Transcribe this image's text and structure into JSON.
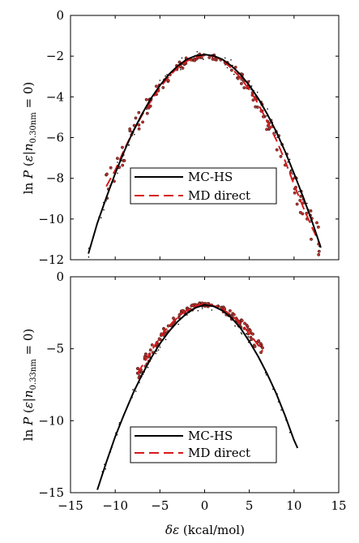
{
  "colors": {
    "mc_line": "#000000",
    "md_line": "#d7191c",
    "md_point_fill": "#b5352e",
    "md_point_stroke": "#3a1010",
    "dot": "#000000"
  },
  "chart_data": [
    {
      "type": "line",
      "ylabel_parts": [
        "ln ",
        "P",
        " (",
        "ε",
        "|",
        "n",
        "0.30nm",
        " = 0)"
      ],
      "xlim": [
        -15,
        15
      ],
      "ylim": [
        -12,
        0
      ],
      "xticks": [
        "−15",
        "−10",
        "−5",
        "0",
        "5",
        "10",
        "15"
      ],
      "yticks": [
        "0",
        "−2",
        "−4",
        "−6",
        "−8",
        "−10",
        "−12"
      ],
      "xtick_values": [
        -15,
        -10,
        -5,
        0,
        5,
        10,
        15
      ],
      "ytick_values": [
        0,
        -2,
        -4,
        -6,
        -8,
        -10,
        -12
      ],
      "legend": {
        "placement": "lower-center",
        "entries": [
          "MC-HS",
          "MD direct"
        ]
      },
      "series": [
        {
          "name": "MC-HS",
          "style": "solid",
          "x": [
            -13.0,
            -12.0,
            -11.0,
            -10.0,
            -9.0,
            -8.0,
            -7.0,
            -6.0,
            -5.0,
            -4.0,
            -3.0,
            -2.0,
            -1.0,
            0.0,
            1.0,
            2.0,
            3.0,
            4.0,
            5.0,
            6.0,
            7.0,
            8.0,
            9.0,
            10.0,
            11.0,
            12.0,
            13.0
          ],
          "y": [
            -11.7,
            -10.2,
            -8.96,
            -7.76,
            -6.68,
            -5.7,
            -4.84,
            -4.08,
            -3.44,
            -2.9,
            -2.48,
            -2.16,
            -1.98,
            -1.92,
            -1.98,
            -2.16,
            -2.48,
            -2.9,
            -3.44,
            -4.08,
            -4.84,
            -5.7,
            -6.68,
            -7.76,
            -8.9,
            -10.1,
            -11.4
          ]
        },
        {
          "name": "MD direct",
          "style": "dashed",
          "x": [
            -11.0,
            -10.0,
            -9.0,
            -8.0,
            -7.0,
            -6.0,
            -5.0,
            -4.0,
            -3.0,
            -2.0,
            -1.0,
            0.0,
            1.0,
            2.0,
            3.0,
            4.0,
            5.0,
            6.0,
            7.0,
            8.0,
            9.0,
            10.0,
            11.0,
            12.0,
            12.9
          ],
          "y": [
            -8.4,
            -7.6,
            -6.6,
            -5.7,
            -4.9,
            -4.2,
            -3.55,
            -3.0,
            -2.55,
            -2.25,
            -2.05,
            -1.95,
            -2.0,
            -2.2,
            -2.6,
            -3.05,
            -3.65,
            -4.35,
            -5.2,
            -6.1,
            -7.15,
            -8.3,
            -9.4,
            -10.4,
            -11.25
          ]
        }
      ]
    },
    {
      "type": "line",
      "ylabel_parts": [
        "ln ",
        "P",
        " (",
        "ε",
        "|",
        "n",
        "0.33nm",
        " = 0)"
      ],
      "xlabel_parts": [
        "δε",
        " (kcal/mol)"
      ],
      "xlim": [
        -15,
        15
      ],
      "ylim": [
        -15,
        0
      ],
      "xticks": [
        "−15",
        "−10",
        "−5",
        "0",
        "5",
        "10",
        "15"
      ],
      "yticks": [
        "0",
        "−5",
        "−10",
        "−15"
      ],
      "xtick_values": [
        -15,
        -10,
        -5,
        0,
        5,
        10,
        15
      ],
      "ytick_values": [
        0,
        -5,
        -10,
        -15
      ],
      "legend": {
        "placement": "lower-center",
        "entries": [
          "MC-HS",
          "MD direct"
        ]
      },
      "series": [
        {
          "name": "MC-HS",
          "style": "solid",
          "x": [
            -12.0,
            -11.0,
            -10.0,
            -9.0,
            -8.0,
            -7.0,
            -6.0,
            -5.0,
            -4.0,
            -3.0,
            -2.0,
            -1.0,
            0.0,
            1.0,
            2.0,
            3.0,
            4.0,
            5.0,
            6.0,
            7.0,
            8.0,
            9.0,
            10.0,
            10.4
          ],
          "y": [
            -14.8,
            -12.9,
            -11.1,
            -9.55,
            -8.1,
            -6.8,
            -5.65,
            -4.65,
            -3.8,
            -3.1,
            -2.55,
            -2.15,
            -1.95,
            -2.05,
            -2.35,
            -2.85,
            -3.55,
            -4.5,
            -5.55,
            -6.75,
            -8.1,
            -9.65,
            -11.35,
            -11.9
          ]
        },
        {
          "name": "MD direct",
          "style": "dashed",
          "x": [
            -7.5,
            -6.5,
            -5.5,
            -4.5,
            -3.5,
            -2.5,
            -1.5,
            -0.5,
            0.5,
            1.5,
            2.5,
            3.5,
            4.5,
            5.5,
            6.5
          ],
          "y": [
            -6.7,
            -5.7,
            -4.7,
            -3.8,
            -3.1,
            -2.55,
            -2.15,
            -1.95,
            -1.95,
            -2.1,
            -2.45,
            -2.95,
            -3.55,
            -4.35,
            -5.2
          ]
        }
      ]
    }
  ]
}
